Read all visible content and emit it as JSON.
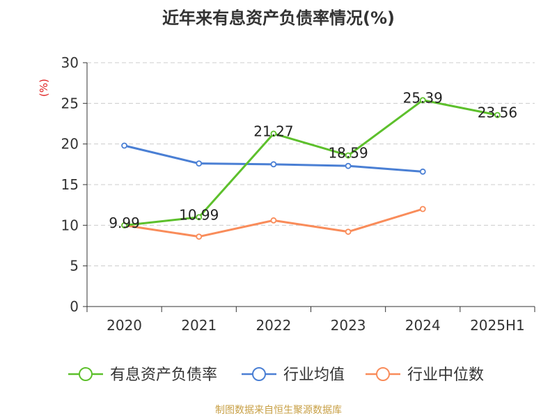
{
  "chart_data": {
    "type": "line",
    "title": "近年来有息资产负债率情况(%)",
    "ylabel": "(%)",
    "xlabel": "",
    "categories": [
      "2020",
      "2021",
      "2022",
      "2023",
      "2024",
      "2025H1"
    ],
    "yticks": [
      "0",
      "5",
      "10",
      "15",
      "20",
      "25",
      "30"
    ],
    "ylim": [
      0,
      30
    ],
    "grid": true,
    "legend_position": "bottom",
    "series": [
      {
        "name": "有息资产负债率",
        "color": "#5dc02c",
        "values": [
          9.99,
          10.99,
          21.27,
          18.59,
          25.39,
          23.56
        ],
        "labels": [
          "9.99",
          "10.99",
          "21.27",
          "18.59",
          "25.39",
          "23.56"
        ]
      },
      {
        "name": "行业均值",
        "color": "#4a7fd4",
        "values": [
          19.8,
          17.6,
          17.5,
          17.3,
          16.6,
          null
        ]
      },
      {
        "name": "行业中位数",
        "color": "#f98c5a",
        "values": [
          10.0,
          8.6,
          10.6,
          9.2,
          12.0,
          null
        ]
      }
    ]
  },
  "source": "制图数据来自恒生聚源数据库"
}
